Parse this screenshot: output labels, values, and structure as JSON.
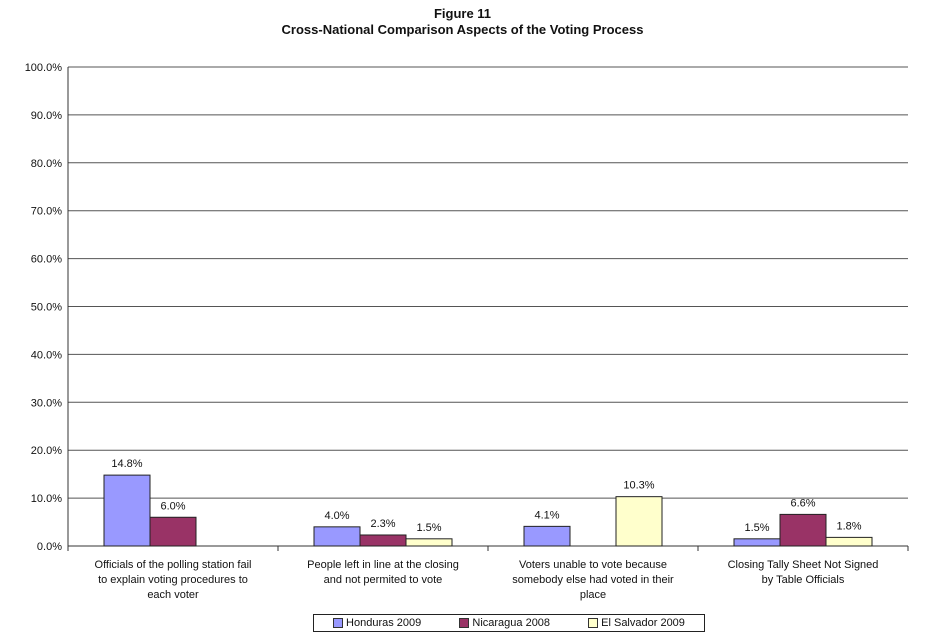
{
  "chart_data": {
    "type": "bar",
    "title": "Figure 11",
    "subtitle": "Cross-National Comparison Aspects of the Voting Process",
    "categories": [
      [
        "Officials of the polling station fail",
        "to explain voting procedures to",
        "each voter"
      ],
      [
        "People left in line at the closing",
        "and not permited to vote"
      ],
      [
        "Voters unable to vote because",
        "somebody else had voted in their",
        "place"
      ],
      [
        "Closing Tally Sheet Not Signed",
        "by Table Officials"
      ]
    ],
    "series": [
      {
        "name": "Honduras 2009",
        "color": "#9999ff",
        "values": [
          14.8,
          4.0,
          4.1,
          1.5
        ],
        "labels": [
          "14.8%",
          "4.0%",
          "4.1%",
          "1.5%"
        ]
      },
      {
        "name": "Nicaragua 2008",
        "color": "#993366",
        "values": [
          6.0,
          2.3,
          null,
          6.6
        ],
        "labels": [
          "6.0%",
          "2.3%",
          "",
          "6.6%"
        ]
      },
      {
        "name": "El Salvador 2009",
        "color": "#ffffcc",
        "values": [
          null,
          1.5,
          10.3,
          1.8
        ],
        "labels": [
          "",
          "1.5%",
          "10.3%",
          "1.8%"
        ]
      }
    ],
    "ylim": [
      0,
      100
    ],
    "yticks": [
      "0.0%",
      "10.0%",
      "20.0%",
      "30.0%",
      "40.0%",
      "50.0%",
      "60.0%",
      "70.0%",
      "80.0%",
      "90.0%",
      "100.0%"
    ],
    "grid": true,
    "legend_position": "bottom"
  }
}
